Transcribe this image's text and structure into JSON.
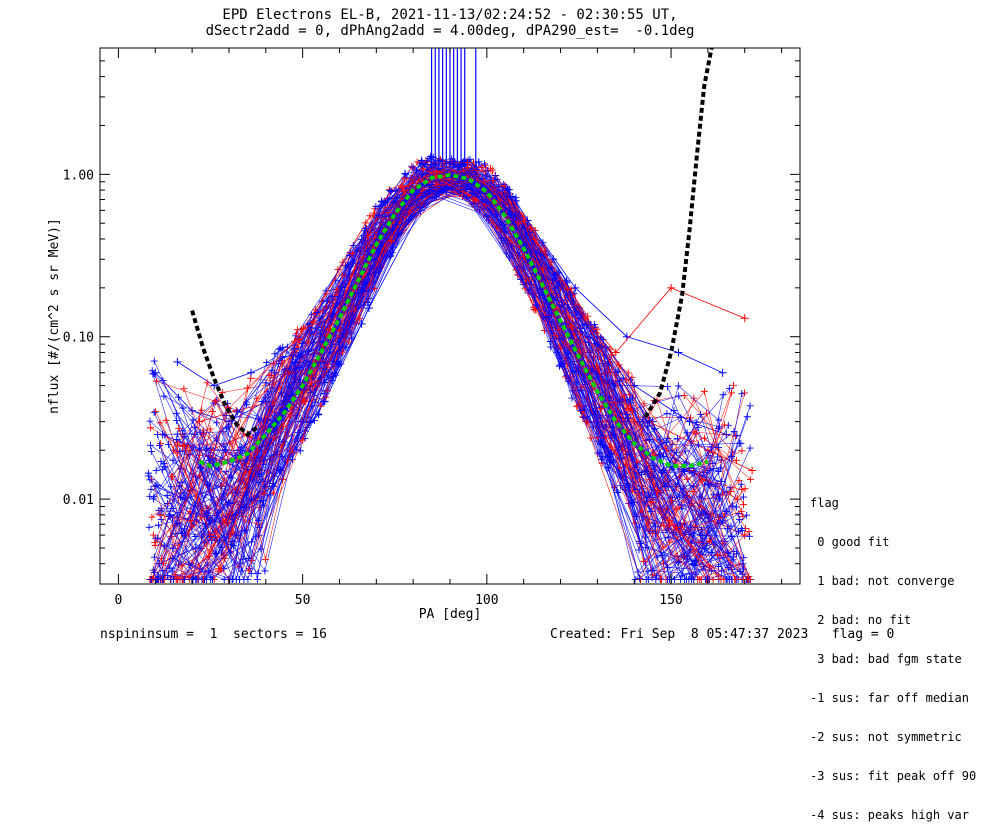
{
  "chart_data": {
    "type": "line",
    "title": "EPD Electrons EL-B, 2021-11-13/02:24:52 - 02:30:55 UT,",
    "subtitle": "dSectr2add = 0, dPhAng2add = 4.00deg, dPA290_est=  -0.1deg",
    "xlabel": "PA [deg]",
    "ylabel": "nflux [#/(cm^2 s sr MeV)]",
    "xlim": [
      -5,
      185
    ],
    "ylim": [
      0.003,
      6
    ],
    "yscale": "log",
    "x_ticks": [
      0,
      50,
      100,
      150
    ],
    "y_ticks": [
      {
        "value": 0.01,
        "label": "0.01"
      },
      {
        "value": 0.1,
        "label": "0.10"
      },
      {
        "value": 1.0,
        "label": "1.00"
      }
    ],
    "colors": {
      "blue": "#0000ff",
      "red": "#ff0000",
      "green": "#00cc00",
      "black": "#000000"
    },
    "series": [
      {
        "color": "#00cc00",
        "style": "dashed",
        "x": [
          22,
          25,
          30,
          35,
          40,
          45,
          50,
          55,
          60,
          65,
          70,
          75,
          80,
          85,
          90,
          95,
          100,
          105,
          110,
          115,
          120,
          125,
          130,
          135,
          140,
          145,
          150,
          155,
          160
        ],
        "y": [
          0.017,
          0.016,
          0.017,
          0.019,
          0.025,
          0.034,
          0.05,
          0.08,
          0.13,
          0.22,
          0.37,
          0.57,
          0.8,
          0.95,
          0.99,
          0.94,
          0.78,
          0.55,
          0.35,
          0.21,
          0.125,
          0.075,
          0.046,
          0.03,
          0.022,
          0.018,
          0.016,
          0.016,
          0.017
        ]
      },
      {
        "color": "#000000",
        "style": "dashed",
        "x": [
          20,
          23,
          26,
          29,
          32,
          35,
          38
        ],
        "y": [
          0.145,
          0.085,
          0.055,
          0.038,
          0.029,
          0.025,
          0.028
        ]
      },
      {
        "color": "#000000",
        "style": "dashed",
        "x": [
          143,
          147,
          150,
          153,
          155,
          157,
          159,
          161
        ],
        "y": [
          0.032,
          0.045,
          0.08,
          0.18,
          0.45,
          1.3,
          3.5,
          6.0
        ]
      }
    ],
    "scatter_groups": [
      {
        "color": "#0000ff",
        "curves": [
          {
            "x": [
              10,
              20,
              30,
              40,
              55,
              70,
              85,
              95,
              110,
              125,
              140,
              155,
              165
            ],
            "y": [
              0.06,
              0.035,
              0.03,
              0.04,
              0.1,
              0.35,
              0.8,
              0.95,
              0.5,
              0.15,
              0.05,
              0.03,
              0.025
            ]
          },
          {
            "x": [
              12,
              22,
              33,
              45,
              58,
              72,
              86,
              96,
              108,
              122,
              135,
              150,
              162
            ],
            "y": [
              0.025,
              0.02,
              0.02,
              0.035,
              0.09,
              0.32,
              0.85,
              1.0,
              0.55,
              0.18,
              0.06,
              0.02,
              0.012
            ]
          },
          {
            "x": [
              10,
              18,
              28,
              38,
              50,
              65,
              80,
              92,
              105,
              120,
              133,
              148,
              160
            ],
            "y": [
              0.012,
              0.01,
              0.012,
              0.02,
              0.05,
              0.2,
              0.7,
              1.05,
              0.7,
              0.22,
              0.07,
              0.015,
              0.008
            ]
          },
          {
            "x": [
              14,
              24,
              34,
              44,
              56,
              68,
              82,
              93,
              107,
              118,
              130,
              145,
              158
            ],
            "y": [
              0.008,
              0.007,
              0.009,
              0.015,
              0.04,
              0.15,
              0.6,
              1.02,
              0.65,
              0.3,
              0.1,
              0.03,
              0.006
            ]
          },
          {
            "x": [
              11,
              21,
              31,
              42,
              52,
              66,
              79,
              91,
              104,
              116,
              128,
              142,
              156
            ],
            "y": [
              0.004,
              0.005,
              0.008,
              0.012,
              0.03,
              0.12,
              0.55,
              0.98,
              0.72,
              0.32,
              0.08,
              0.012,
              0.004
            ]
          },
          {
            "x": [
              16,
              26,
              36,
              48,
              60,
              74,
              88,
              97,
              111,
              124,
              138,
              152,
              164
            ],
            "y": [
              0.07,
              0.05,
              0.06,
              0.08,
              0.16,
              0.45,
              0.88,
              0.96,
              0.52,
              0.2,
              0.1,
              0.08,
              0.06
            ]
          }
        ]
      },
      {
        "color": "#ff0000",
        "curves": [
          {
            "x": [
              15,
              25,
              35,
              45,
              60,
              75,
              85,
              95,
              105,
              120,
              135,
              150,
              170
            ],
            "y": [
              0.02,
              0.02,
              0.025,
              0.04,
              0.15,
              0.5,
              1.1,
              1.0,
              0.7,
              0.2,
              0.08,
              0.2,
              0.13
            ]
          },
          {
            "x": [
              18,
              28,
              38,
              50,
              62,
              76,
              84,
              98,
              110,
              126,
              140,
              155,
              168
            ],
            "y": [
              0.006,
              0.01,
              0.015,
              0.03,
              0.12,
              0.45,
              1.0,
              0.95,
              0.4,
              0.08,
              0.03,
              0.015,
              0.01
            ]
          },
          {
            "x": [
              20,
              30,
              40,
              52,
              64,
              78,
              87,
              99,
              112,
              128,
              142,
              158,
              170
            ],
            "y": [
              0.004,
              0.008,
              0.02,
              0.05,
              0.18,
              0.6,
              1.05,
              0.9,
              0.35,
              0.06,
              0.02,
              0.008,
              0.006
            ]
          },
          {
            "x": [
              22,
              32,
              42,
              54,
              66,
              80,
              89,
              101,
              114,
              127,
              144,
              160,
              172
            ],
            "y": [
              0.03,
              0.035,
              0.04,
              0.07,
              0.22,
              0.65,
              0.98,
              0.85,
              0.3,
              0.03,
              0.03,
              0.02,
              0.015
            ]
          }
        ]
      }
    ],
    "vertical_lines": {
      "color": "#0000ff",
      "x": [
        85,
        86,
        87,
        88,
        89,
        90,
        91,
        92,
        93,
        94,
        97
      ],
      "y_from": 1.1,
      "y_to": 6
    },
    "grid": false,
    "legend_position": "right-bottom"
  },
  "legend": {
    "title": "flag",
    "items": [
      " 0 good fit",
      " 1 bad: not converge",
      " 2 bad: no fit",
      " 3 bad: bad fgm state",
      "-1 sus: far off median",
      "-2 sus: not symmetric",
      "-3 sus: fit peak off 90",
      "-4 sus: peaks high var"
    ]
  },
  "footer": {
    "left": "nspininsum =  1  sectors = 16",
    "right": "Created: Fri Sep  8 05:47:37 2023   flag = 0"
  }
}
